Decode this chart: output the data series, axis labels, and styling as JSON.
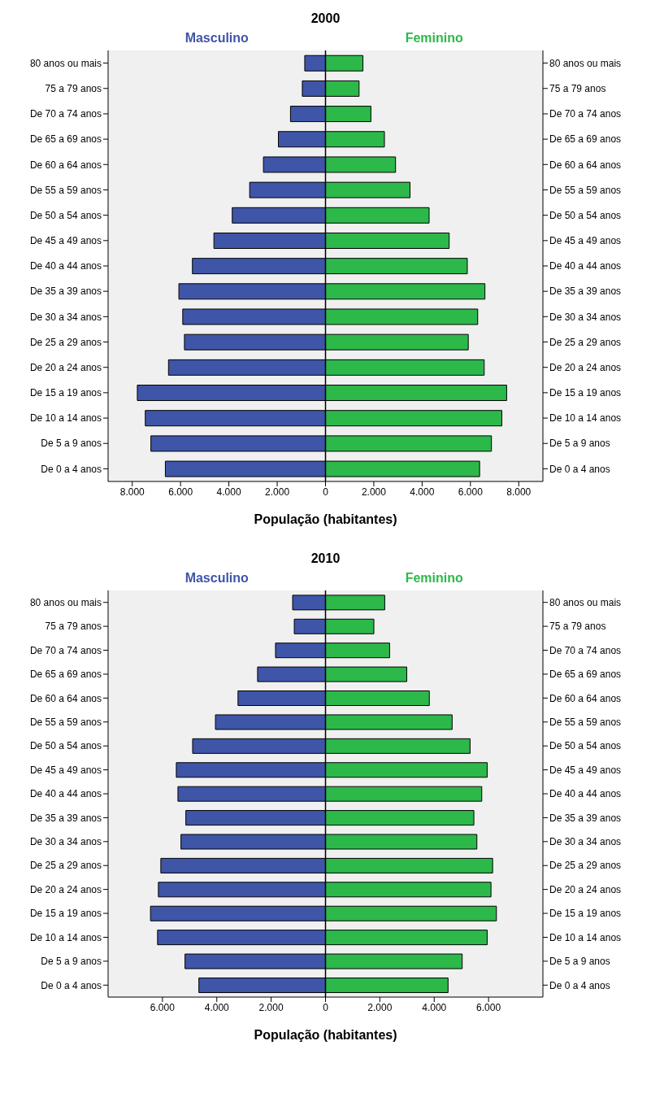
{
  "chart_data": [
    {
      "type": "bar",
      "orientation": "horizontal",
      "stacked": true,
      "title": "2000",
      "xlabel": "População (habitantes)",
      "categories": [
        "80 anos ou mais",
        "75 a 79 anos",
        "De 70 a 74 anos",
        "De 65 a 69 anos",
        "De 60 a 64 anos",
        "De 55 a 59 anos",
        "De 50 a 54 anos",
        "De 45 a 49 anos",
        "De 40 a 44 anos",
        "De 35 a 39 anos",
        "De 30 a 34 anos",
        "De 25 a 29 anos",
        "De 20 a 24 anos",
        "De 15 a 19 anos",
        "De 10 a 14 anos",
        "De 5 a 9 anos",
        "De 0 a 4 anos"
      ],
      "series": [
        {
          "name": "Masculino",
          "color": "#3f55a8",
          "values": [
            -860,
            -960,
            -1450,
            -1950,
            -2570,
            -3140,
            -3860,
            -4620,
            -5510,
            -6070,
            -5910,
            -5840,
            -6500,
            -7790,
            -7460,
            -7230,
            -6630
          ]
        },
        {
          "name": "Feminino",
          "color": "#2db84a",
          "values": [
            1550,
            1390,
            1880,
            2440,
            2900,
            3500,
            4290,
            5120,
            5870,
            6600,
            6300,
            5910,
            6570,
            7500,
            7300,
            6870,
            6380
          ]
        }
      ],
      "xlim": [
        -9000,
        9000
      ],
      "xticks": [
        {
          "value": -8000,
          "label": "8.000"
        },
        {
          "value": -6000,
          "label": "6.000"
        },
        {
          "value": -4000,
          "label": "4.000"
        },
        {
          "value": -2000,
          "label": "2.000"
        },
        0,
        {
          "value": 2000,
          "label": "2.000"
        },
        {
          "value": 4000,
          "label": "4.000"
        },
        {
          "value": 6000,
          "label": "6.000"
        },
        {
          "value": 8000,
          "label": "8.000"
        }
      ],
      "ref_lines": [
        {
          "axis": "x",
          "value": 0,
          "color": "#000000"
        }
      ],
      "grid": false,
      "legend": false
    },
    {
      "type": "bar",
      "orientation": "horizontal",
      "stacked": true,
      "title": "2010",
      "xlabel": "População (habitantes)",
      "categories": [
        "80 anos ou mais",
        "75 a 79 anos",
        "De 70 a 74 anos",
        "De 65 a 69 anos",
        "De 60 a 64 anos",
        "De 55 a 59 anos",
        "De 50 a 54 anos",
        "De 45 a 49 anos",
        "De 40 a 44 anos",
        "De 35 a 39 anos",
        "De 30 a 34 anos",
        "De 25 a 29 anos",
        "De 20 a 24 anos",
        "De 15 a 19 anos",
        "De 10 a 14 anos",
        "De 5 a 9 anos",
        "De 0 a 4 anos"
      ],
      "series": [
        {
          "name": "Masculino",
          "color": "#3f55a8",
          "values": [
            -1210,
            -1150,
            -1840,
            -2500,
            -3220,
            -4050,
            -4890,
            -5490,
            -5430,
            -5140,
            -5320,
            -6060,
            -6150,
            -6440,
            -6180,
            -5170,
            -4660
          ]
        },
        {
          "name": "Feminino",
          "color": "#2db84a",
          "values": [
            2180,
            1780,
            2360,
            2990,
            3820,
            4660,
            5320,
            5950,
            5750,
            5460,
            5570,
            6150,
            6090,
            6290,
            5950,
            5030,
            4510
          ]
        }
      ],
      "xlim": [
        -8000,
        8000
      ],
      "xticks": [
        {
          "value": -6000,
          "label": "6.000"
        },
        {
          "value": -4000,
          "label": "4.000"
        },
        {
          "value": -2000,
          "label": "2.000"
        },
        0,
        {
          "value": 2000,
          "label": "2.000"
        },
        {
          "value": 4000,
          "label": "4.000"
        },
        {
          "value": 6000,
          "label": "6.000"
        }
      ],
      "ref_lines": [
        {
          "axis": "x",
          "value": 0,
          "color": "#000000"
        }
      ],
      "grid": false,
      "legend": false
    }
  ]
}
